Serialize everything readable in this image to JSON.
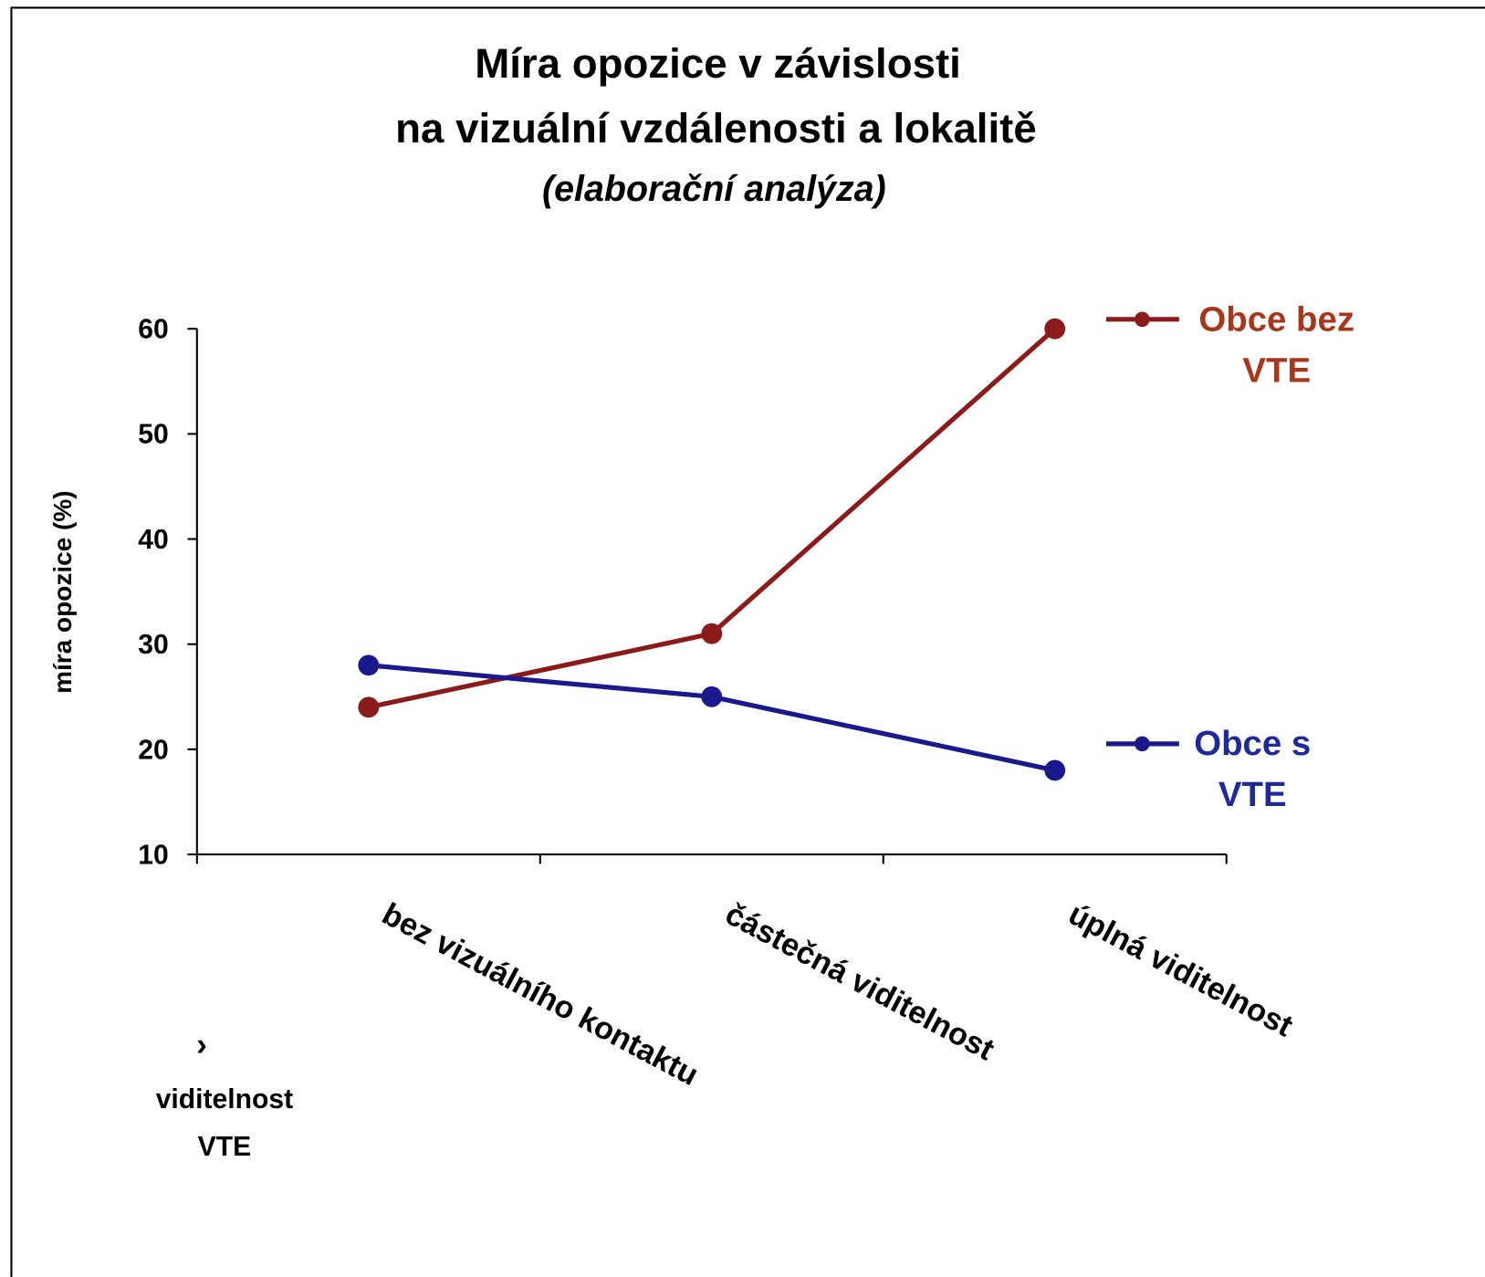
{
  "chart_data": {
    "type": "line",
    "title_lines": [
      "Míra opozice v závislosti",
      "na vizuální vzdálenosti a lokalitě"
    ],
    "subtitle": "(elaborační analýza)",
    "ylabel": "míra opozice (%)",
    "xlabel_lines": [
      "viditelnost",
      "VTE"
    ],
    "annotations": [
      "›"
    ],
    "categories": [
      "bez vizuálního kontaktu",
      "částečná viditelnost",
      "úplná viditelnost"
    ],
    "series": [
      {
        "name": "Obce bez VTE",
        "color": "#8b1a1a",
        "label_color": "#a8361c",
        "values": [
          24,
          31,
          60
        ]
      },
      {
        "name": "Obce s VTE",
        "color": "#1a1a8c",
        "label_color": "#1f2a9a",
        "values": [
          28,
          25,
          18
        ]
      }
    ],
    "ylim": [
      10,
      60
    ],
    "yticks": [
      10,
      20,
      30,
      40,
      50,
      60
    ],
    "grid": false
  }
}
